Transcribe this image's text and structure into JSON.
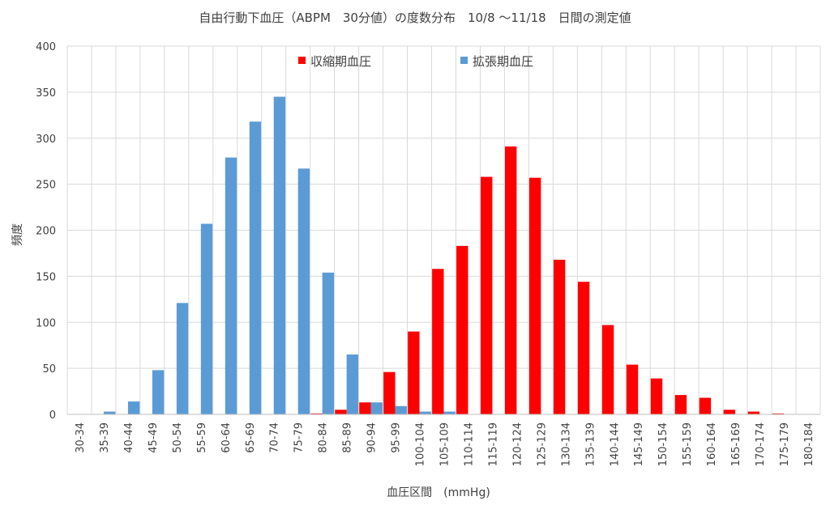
{
  "chart_data": {
    "type": "bar",
    "title": "自由行動下血圧（ABPM　30分値）の度数分布　10/8 〜11/18　日間の測定値",
    "xlabel": "血圧区間　(mmHg)",
    "ylabel": "頻度",
    "ylim": [
      0,
      400
    ],
    "yticks": [
      0,
      50,
      100,
      150,
      200,
      250,
      300,
      350,
      400
    ],
    "grid": true,
    "legend_position": "top",
    "categories": [
      "30-34",
      "35-39",
      "40-44",
      "45-49",
      "50-54",
      "55-59",
      "60-64",
      "65-69",
      "70-74",
      "75-79",
      "80-84",
      "85-89",
      "90-94",
      "95-99",
      "100-104",
      "105-109",
      "110-114",
      "115-119",
      "120-124",
      "125-129",
      "130-134",
      "135-139",
      "140-144",
      "145-149",
      "150-154",
      "155-159",
      "160-164",
      "165-169",
      "170-174",
      "175-179",
      "180-184"
    ],
    "series": [
      {
        "name": "収縮期血圧",
        "color": "#ff0000",
        "values": [
          0,
          0,
          0,
          0,
          0,
          0,
          0,
          0,
          0,
          0,
          1,
          5,
          13,
          46,
          90,
          158,
          183,
          258,
          291,
          257,
          168,
          144,
          97,
          54,
          39,
          21,
          18,
          5,
          3,
          1,
          0
        ]
      },
      {
        "name": "拡張期血圧",
        "color": "#5b9bd5",
        "values": [
          0,
          3,
          14,
          48,
          121,
          207,
          279,
          318,
          345,
          267,
          154,
          65,
          13,
          9,
          3,
          3,
          0,
          0,
          0,
          0,
          0,
          0,
          0,
          0,
          0,
          0,
          0,
          0,
          0,
          0,
          0
        ]
      }
    ]
  }
}
